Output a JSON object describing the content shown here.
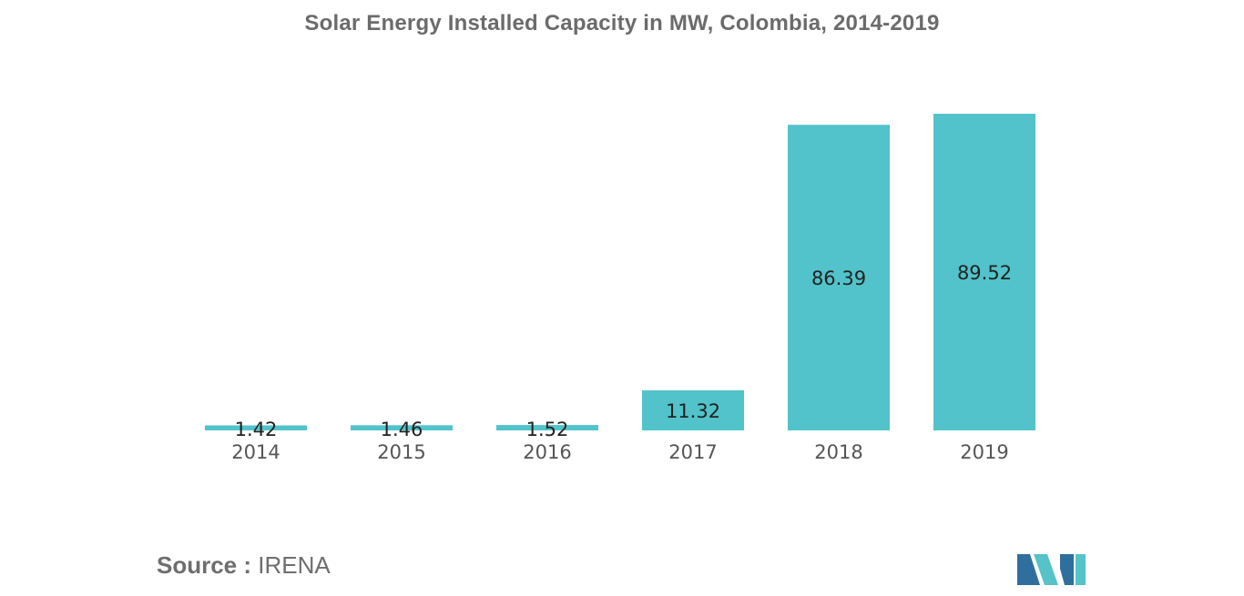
{
  "chart_data": {
    "type": "bar",
    "title": "Solar Energy Installed Capacity in MW, Colombia, 2014-2019",
    "categories": [
      "2014",
      "2015",
      "2016",
      "2017",
      "2018",
      "2019"
    ],
    "values": [
      1.42,
      1.46,
      1.52,
      11.32,
      86.39,
      89.52
    ],
    "value_labels": [
      "1.42",
      "1.46",
      "1.52",
      "11.32",
      "86.39",
      "89.52"
    ],
    "xlabel": "",
    "ylabel": "",
    "ylim": [
      0,
      89.52
    ],
    "grid": false,
    "legend": "none",
    "bar_color": "#52c3ca"
  },
  "source": {
    "prefix": "Source :",
    "text": "IRENA"
  },
  "colors": {
    "logo_dark": "#2f6f9e",
    "logo_light": "#55c3c8"
  }
}
